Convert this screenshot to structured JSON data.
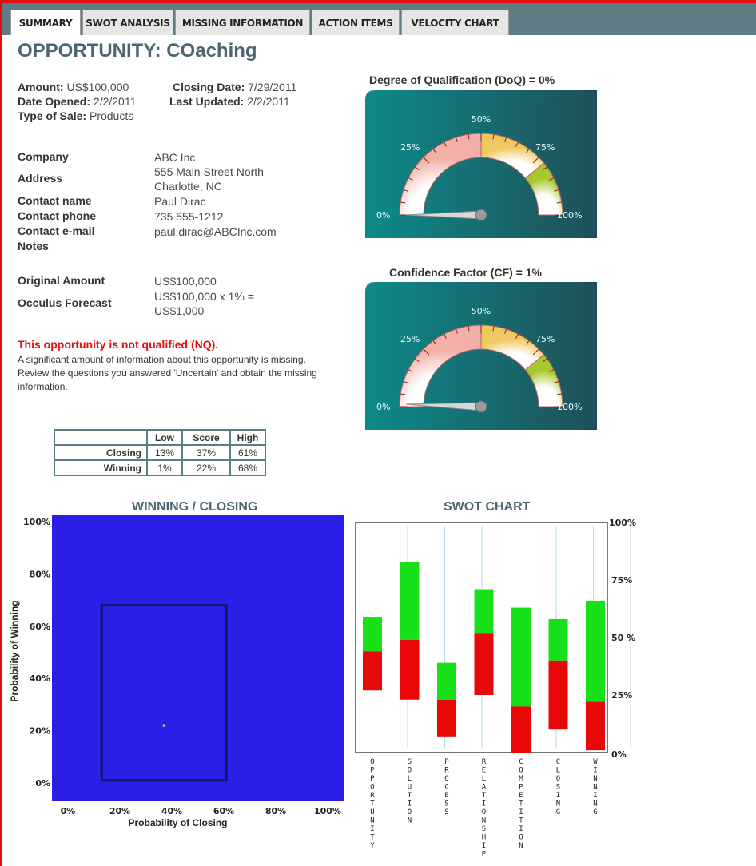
{
  "tabs": [
    {
      "label": "SUMMARY"
    },
    {
      "label": "SWOT ANALYSIS"
    },
    {
      "label": "MISSING INFORMATION"
    },
    {
      "label": "ACTION ITEMS"
    },
    {
      "label": "VELOCITY CHART"
    }
  ],
  "page_title": "OPPORTUNITY: COaching",
  "summary": {
    "amount_label": "Amount:",
    "amount": "US$100,000",
    "closing_label": "Closing Date:",
    "closing": "7/29/2011",
    "opened_label": "Date Opened:",
    "opened": "2/2/2011",
    "updated_label": "Last Updated:",
    "updated": "2/2/2011",
    "type_label": "Type of Sale:",
    "type": "Products"
  },
  "contact": {
    "company_label": "Company",
    "company": "ABC Inc",
    "address_label": "Address",
    "address1": "555 Main Street North",
    "address2": "Charlotte, NC",
    "name_label": "Contact name",
    "name": "Paul Dirac",
    "phone_label": "Contact phone",
    "phone": "735 555-1212",
    "email_label": "Contact e-mail",
    "email": "paul.dirac@ABCInc.com",
    "notes_label": "Notes"
  },
  "forecast": {
    "original_label": "Original Amount",
    "original": "US$100,000",
    "occulus_label": "Occulus Forecast",
    "occulus1": "US$100,000 x 1% =",
    "occulus2": "US$1,000"
  },
  "status": {
    "headline": "This opportunity is not qualified (NQ).",
    "line1": "A significant amount of information about this opportunity is missing.",
    "line2": "Review the questions you answered 'Uncertain' and obtain the missing information."
  },
  "score_table": {
    "headers": [
      "",
      "Low",
      "Score",
      "High"
    ],
    "rows": [
      {
        "label": "Closing",
        "low": "13%",
        "score": "37%",
        "high": "61%"
      },
      {
        "label": "Winning",
        "low": "1%",
        "score": "22%",
        "high": "68%"
      }
    ]
  },
  "gauges": [
    {
      "title": "Degree of Qualification (DoQ) = 0%",
      "value": 0,
      "ticks": [
        "0%",
        "25%",
        "50%",
        "75%",
        "100%"
      ]
    },
    {
      "title": "Confidence Factor (CF) = 1%",
      "value": 1,
      "ticks": [
        "0%",
        "25%",
        "50%",
        "75%",
        "100%"
      ]
    }
  ],
  "colors": {
    "tabstrip": "#5d7c84",
    "plot_bg": "#2b1ee6",
    "green": "#18e018",
    "red": "#e80808",
    "accent_red": "#e01010"
  },
  "chart_data": [
    {
      "type": "scatter",
      "title": "WINNING / CLOSING",
      "xlabel": "Probability of Closing",
      "ylabel": "Probability of Winning",
      "xlim": [
        0,
        100
      ],
      "ylim": [
        0,
        100
      ],
      "xticks": [
        "0%",
        "20%",
        "40%",
        "60%",
        "80%",
        "100%"
      ],
      "yticks": [
        "0%",
        "20%",
        "40%",
        "60%",
        "80%",
        "100%"
      ],
      "range_box": {
        "x": [
          13,
          61
        ],
        "y": [
          1,
          68
        ]
      },
      "point": {
        "x": 37,
        "y": 22
      }
    },
    {
      "type": "bar",
      "title": "SWOT CHART",
      "categories": [
        "OPPORTUNITY",
        "SOLUTION",
        "PROCESS",
        "RELATIONSHIP",
        "COMPETITION",
        "CLOSING",
        "WINNING"
      ],
      "ylim": [
        0,
        100
      ],
      "yticks": [
        "0%",
        "25%",
        "50 %",
        "75%",
        "100%"
      ],
      "series": [
        {
          "name": "green",
          "values": [
            [
              44,
              59
            ],
            [
              49,
              83
            ],
            [
              23,
              39
            ],
            [
              52,
              71
            ],
            [
              20,
              63
            ],
            [
              40,
              58
            ],
            [
              20,
              66
            ]
          ]
        },
        {
          "name": "red",
          "values": [
            [
              27,
              44
            ],
            [
              23,
              49
            ],
            [
              7,
              23
            ],
            [
              25,
              52
            ],
            [
              0,
              20
            ],
            [
              10,
              40
            ],
            [
              1,
              22
            ]
          ]
        }
      ]
    }
  ]
}
